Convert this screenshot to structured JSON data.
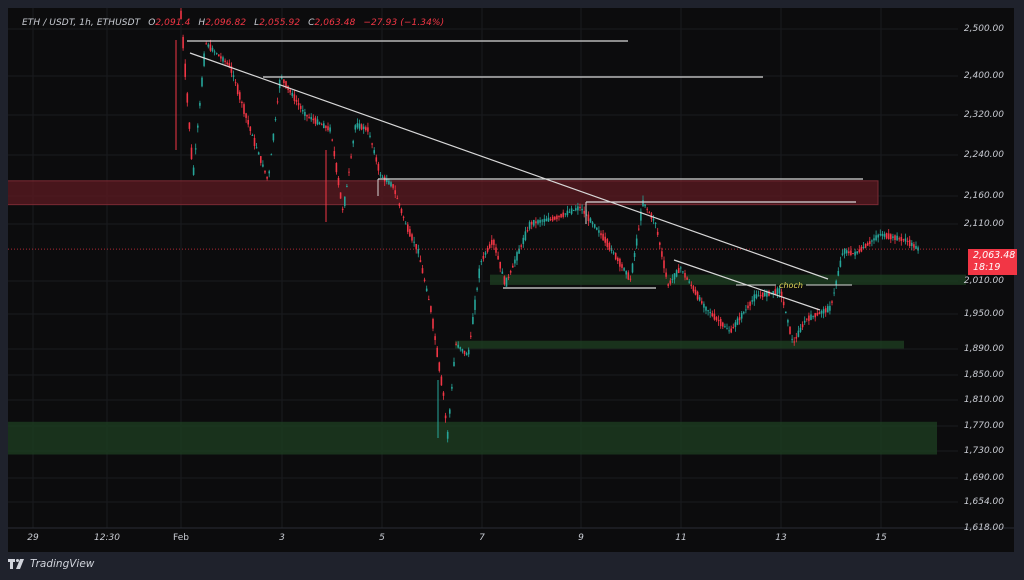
{
  "header": {
    "symbol": "ETH / USDT, 1h, ETHUSDT",
    "open_label": "O",
    "open": "2,091.4",
    "high_label": "H",
    "high": "2,096.82",
    "low_label": "L",
    "low": "2,055.92",
    "close_label": "C",
    "close": "2,063.48",
    "change": "−27.93 (−1.34%)"
  },
  "price_tag": {
    "price": "2,063.48",
    "countdown": "18:19",
    "color": "#f23645"
  },
  "annotation": {
    "choch_label": "choch"
  },
  "footer": {
    "brand": "TradingView"
  },
  "colors": {
    "up": "#26a69a",
    "down": "#f23645",
    "supply_zone": "#5c1a22",
    "demand_zone": "#1c3a20",
    "lines": "#d8d8d8",
    "choch": "#e6d85a"
  },
  "chart_data": {
    "type": "candlestick",
    "title": "ETH / USDT, 1h, ETHUSDT",
    "xlabel": "",
    "ylabel": "",
    "y_scale": "log",
    "ylim": [
      1618,
      2540
    ],
    "grid": true,
    "y_ticks": [
      "2,500.00",
      "2,400.00",
      "2,320.00",
      "2,240.00",
      "2,160.00",
      "2,110.00",
      "2,010.00",
      "1,950.00",
      "1,890.00",
      "1,850.00",
      "1,810.00",
      "1,770.00",
      "1,730.00",
      "1,690.00",
      "1,654.00",
      "1,618.00"
    ],
    "x_ticks": [
      "29",
      "12:30",
      "Feb",
      "3",
      "5",
      "7",
      "9",
      "11",
      "13",
      "15"
    ],
    "ohlc_last": {
      "open": 2091.4,
      "high": 2096.82,
      "low": 2055.92,
      "close": 2063.48,
      "change": -27.93,
      "change_pct": -1.34
    },
    "current_price": 2063.48,
    "price_path_approx": [
      {
        "t": "Feb 1 00:00",
        "price": 2540
      },
      {
        "t": "Feb 1 06:00",
        "price": 2200
      },
      {
        "t": "Feb 1 12:00",
        "price": 2470
      },
      {
        "t": "Feb 2 00:00",
        "price": 2420
      },
      {
        "t": "Feb 2 12:00",
        "price": 2260
      },
      {
        "t": "Feb 2 18:00",
        "price": 2190
      },
      {
        "t": "Feb 3 00:00",
        "price": 2400
      },
      {
        "t": "Feb 3 12:00",
        "price": 2320
      },
      {
        "t": "Feb 4 00:00",
        "price": 2290
      },
      {
        "t": "Feb 4 06:00",
        "price": 2130
      },
      {
        "t": "Feb 4 12:00",
        "price": 2300
      },
      {
        "t": "Feb 4 18:00",
        "price": 2290
      },
      {
        "t": "Feb 5 00:00",
        "price": 2200
      },
      {
        "t": "Feb 5 06:00",
        "price": 2180
      },
      {
        "t": "Feb 5 12:00",
        "price": 2110
      },
      {
        "t": "Feb 5 18:00",
        "price": 2060
      },
      {
        "t": "Feb 6 00:00",
        "price": 1960
      },
      {
        "t": "Feb 6 06:00",
        "price": 1820
      },
      {
        "t": "Feb 6 08:00",
        "price": 1750
      },
      {
        "t": "Feb 6 12:00",
        "price": 1900
      },
      {
        "t": "Feb 6 18:00",
        "price": 1880
      },
      {
        "t": "Feb 7 00:00",
        "price": 2040
      },
      {
        "t": "Feb 7 06:00",
        "price": 2080
      },
      {
        "t": "Feb 7 12:00",
        "price": 2000
      },
      {
        "t": "Feb 8 00:00",
        "price": 2110
      },
      {
        "t": "Feb 8 12:00",
        "price": 2120
      },
      {
        "t": "Feb 9 00:00",
        "price": 2140
      },
      {
        "t": "Feb 9 12:00",
        "price": 2080
      },
      {
        "t": "Feb 10 00:00",
        "price": 2010
      },
      {
        "t": "Feb 10 06:00",
        "price": 2150
      },
      {
        "t": "Feb 10 12:00",
        "price": 2110
      },
      {
        "t": "Feb 10 18:00",
        "price": 2000
      },
      {
        "t": "Feb 11 00:00",
        "price": 2030
      },
      {
        "t": "Feb 11 12:00",
        "price": 1960
      },
      {
        "t": "Feb 12 00:00",
        "price": 1920
      },
      {
        "t": "Feb 12 12:00",
        "price": 1980
      },
      {
        "t": "Feb 13 00:00",
        "price": 1990
      },
      {
        "t": "Feb 13 06:00",
        "price": 1900
      },
      {
        "t": "Feb 13 12:00",
        "price": 1940
      },
      {
        "t": "Feb 14 00:00",
        "price": 1960
      },
      {
        "t": "Feb 14 06:00",
        "price": 2060
      },
      {
        "t": "Feb 14 12:00",
        "price": 2055
      },
      {
        "t": "Feb 15 00:00",
        "price": 2090
      },
      {
        "t": "Feb 15 12:00",
        "price": 2080
      },
      {
        "t": "Feb 15 18:00",
        "price": 2063.48
      }
    ],
    "zones": [
      {
        "type": "supply",
        "from": 2145,
        "to": 2190,
        "color": "#5c1a22"
      },
      {
        "type": "demand",
        "from": 2000,
        "to": 2018,
        "color": "#1c3a20"
      },
      {
        "type": "demand",
        "from": 1892,
        "to": 1905,
        "color": "#1c3a20"
      },
      {
        "type": "demand",
        "from": 1725,
        "to": 1775,
        "color": "#1c3a20"
      }
    ],
    "horizontal_levels": [
      2470,
      2400,
      2190,
      2150,
      2005
    ],
    "trendlines": [
      {
        "from": {
          "t": "Feb 1 12:00",
          "price": 2465
        },
        "to": {
          "t": "Feb 14 12:00",
          "price": 2015
        }
      },
      {
        "from": {
          "t": "Feb 11 00:00",
          "price": 2045
        },
        "to": {
          "t": "Feb 13 18:00",
          "price": 1960
        }
      }
    ],
    "annotations": [
      {
        "text": "choch",
        "price": 2005
      }
    ]
  }
}
